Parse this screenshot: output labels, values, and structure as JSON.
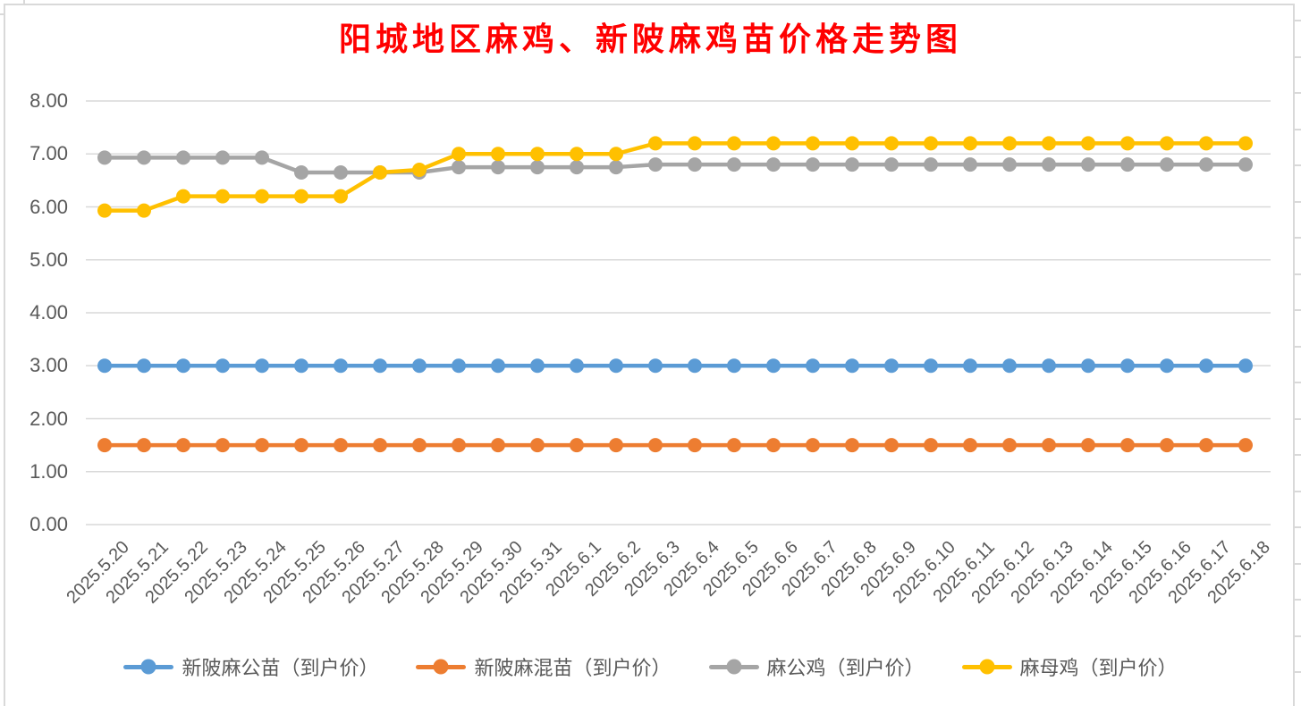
{
  "title": {
    "text": "阳城地区麻鸡、新陂麻鸡苗价格走势图",
    "color": "#FF0000"
  },
  "axis": {
    "text_color": "#595959",
    "grid_color": "#D9D9D9"
  },
  "chart_data": {
    "type": "line",
    "title": "阳城地区麻鸡、新陂麻鸡苗价格走势图",
    "xlabel": "",
    "ylabel": "",
    "ylim": [
      0,
      8
    ],
    "ytick_step": 1,
    "ytick_labels": [
      "0.00",
      "1.00",
      "2.00",
      "3.00",
      "4.00",
      "5.00",
      "6.00",
      "7.00",
      "8.00"
    ],
    "grid": "horizontal",
    "legend_position": "bottom",
    "marker": "circle",
    "categories": [
      "2025.5.20",
      "2025.5.21",
      "2025.5.22",
      "2025.5.23",
      "2025.5.24",
      "2025.5.25",
      "2025.5.26",
      "2025.5.27",
      "2025.5.28",
      "2025.5.29",
      "2025.5.30",
      "2025.5.31",
      "2025.6.1",
      "2025.6.2",
      "2025.6.3",
      "2025.6.4",
      "2025.6.5",
      "2025.6.6",
      "2025.6.7",
      "2025.6.8",
      "2025.6.9",
      "2025.6.10",
      "2025.6.11",
      "2025.6.12",
      "2025.6.13",
      "2025.6.14",
      "2025.6.15",
      "2025.6.16",
      "2025.6.17",
      "2025.6.18"
    ],
    "series": [
      {
        "name": "新陂麻公苗（到户价）",
        "color": "#5B9BD5",
        "values": [
          3.0,
          3.0,
          3.0,
          3.0,
          3.0,
          3.0,
          3.0,
          3.0,
          3.0,
          3.0,
          3.0,
          3.0,
          3.0,
          3.0,
          3.0,
          3.0,
          3.0,
          3.0,
          3.0,
          3.0,
          3.0,
          3.0,
          3.0,
          3.0,
          3.0,
          3.0,
          3.0,
          3.0,
          3.0,
          3.0
        ]
      },
      {
        "name": "新陂麻混苗（到户价）",
        "color": "#ED7D31",
        "values": [
          1.5,
          1.5,
          1.5,
          1.5,
          1.5,
          1.5,
          1.5,
          1.5,
          1.5,
          1.5,
          1.5,
          1.5,
          1.5,
          1.5,
          1.5,
          1.5,
          1.5,
          1.5,
          1.5,
          1.5,
          1.5,
          1.5,
          1.5,
          1.5,
          1.5,
          1.5,
          1.5,
          1.5,
          1.5,
          1.5
        ]
      },
      {
        "name": "麻公鸡（到户价）",
        "color": "#A5A5A5",
        "values": [
          6.93,
          6.93,
          6.93,
          6.93,
          6.93,
          6.65,
          6.65,
          6.65,
          6.65,
          6.75,
          6.75,
          6.75,
          6.75,
          6.75,
          6.8,
          6.8,
          6.8,
          6.8,
          6.8,
          6.8,
          6.8,
          6.8,
          6.8,
          6.8,
          6.8,
          6.8,
          6.8,
          6.8,
          6.8,
          6.8
        ]
      },
      {
        "name": "麻母鸡（到户价）",
        "color": "#FFC000",
        "values": [
          5.93,
          5.93,
          6.2,
          6.2,
          6.2,
          6.2,
          6.2,
          6.65,
          6.7,
          7.0,
          7.0,
          7.0,
          7.0,
          7.0,
          7.2,
          7.2,
          7.2,
          7.2,
          7.2,
          7.2,
          7.2,
          7.2,
          7.2,
          7.2,
          7.2,
          7.2,
          7.2,
          7.2,
          7.2,
          7.2
        ]
      }
    ]
  }
}
